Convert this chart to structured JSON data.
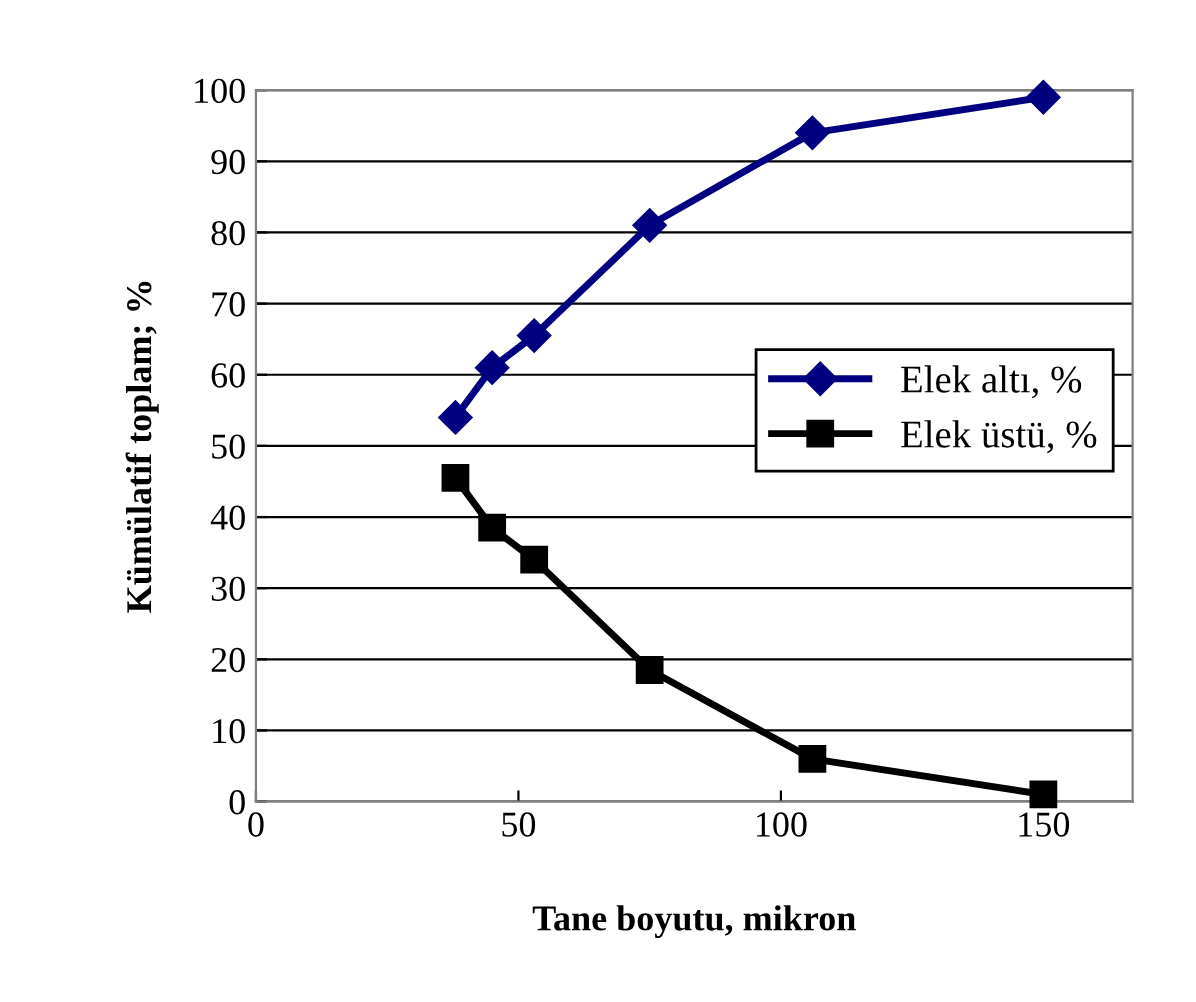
{
  "chart_data": {
    "type": "line",
    "xlabel": "Tane boyutu, mikron",
    "ylabel": "Kümülatif toplam; %",
    "x": [
      38,
      45,
      53,
      75,
      106,
      150
    ],
    "series": [
      {
        "name": "Elek altı, %",
        "color": "#000080",
        "values": [
          54,
          61,
          65.5,
          81,
          94,
          99
        ],
        "marker": "diamond"
      },
      {
        "name": "Elek üstü, %",
        "color": "#000000",
        "values": [
          45.5,
          38.5,
          34,
          18.5,
          6,
          1
        ],
        "marker": "square"
      }
    ],
    "xlim": [
      0,
      167
    ],
    "xticks": [
      0,
      50,
      100,
      150
    ],
    "ylim": [
      0,
      100
    ],
    "yticks": [
      0,
      10,
      20,
      30,
      40,
      50,
      60,
      70,
      80,
      90,
      100
    ],
    "grid": "y",
    "legend": "right",
    "line_style": "solid"
  }
}
